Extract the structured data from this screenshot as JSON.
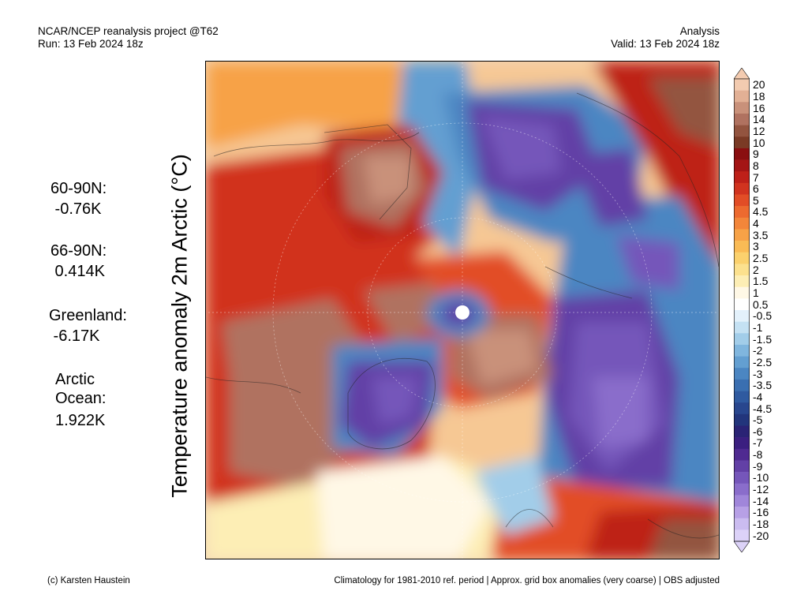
{
  "header": {
    "project": "NCAR/NCEP reanalysis project @T62",
    "run": "Run: 13 Feb 2024 18z",
    "mode": "Analysis",
    "valid": "Valid: 13 Feb 2024 18z"
  },
  "ylabel": "Temperature anomaly 2m Arctic (°C)",
  "stats": [
    {
      "label": "60-90N:",
      "value": " -0.76K"
    },
    {
      "label": "66-90N:",
      "value": " 0.414K"
    },
    {
      "label": "Greenland:",
      "value": " -6.17K"
    },
    {
      "label": "Arctic\nOcean:",
      "value": "1.922K"
    }
  ],
  "colorbar": {
    "labels": [
      "20",
      "18",
      "16",
      "14",
      "12",
      "10",
      "9",
      "8",
      "7",
      "6",
      "5",
      "4.5",
      "4",
      "3.5",
      "3",
      "2.5",
      "2",
      "1.5",
      "1",
      "0.5",
      "-0.5",
      "-1",
      "-1.5",
      "-2",
      "-2.5",
      "-3",
      "-3.5",
      "-4",
      "-4.5",
      "-5",
      "-6",
      "-7",
      "-8",
      "-9",
      "-10",
      "-12",
      "-14",
      "-16",
      "-18",
      "-20"
    ],
    "colors": [
      "#f3cbb0",
      "#e2b095",
      "#c9917a",
      "#b07260",
      "#93543f",
      "#7a3a25",
      "#8a0e10",
      "#a41515",
      "#be2019",
      "#d1331f",
      "#e24d26",
      "#ed6a2f",
      "#f3863a",
      "#f7a247",
      "#fabb55",
      "#fbd16d",
      "#fce18e",
      "#fdeeb5",
      "#fff8e6",
      "#ffffff",
      "#e3f1fb",
      "#c4e1f3",
      "#a2cde9",
      "#80b6de",
      "#639fd1",
      "#4b86c2",
      "#3a6fb1",
      "#2f5aa0",
      "#28468e",
      "#22357c",
      "#2a2375",
      "#3b1f80",
      "#4f2a91",
      "#6240a6",
      "#7556ba",
      "#8a6dcb",
      "#a086da",
      "#b7a0e6",
      "#cbbcf0",
      "#dcd2f8"
    ]
  },
  "footer": {
    "credit": "(c) Karsten Haustein",
    "note": "Climatology for 1981-2010 ref. period | Approx. grid box anomalies (very coarse) | OBS adjusted"
  }
}
